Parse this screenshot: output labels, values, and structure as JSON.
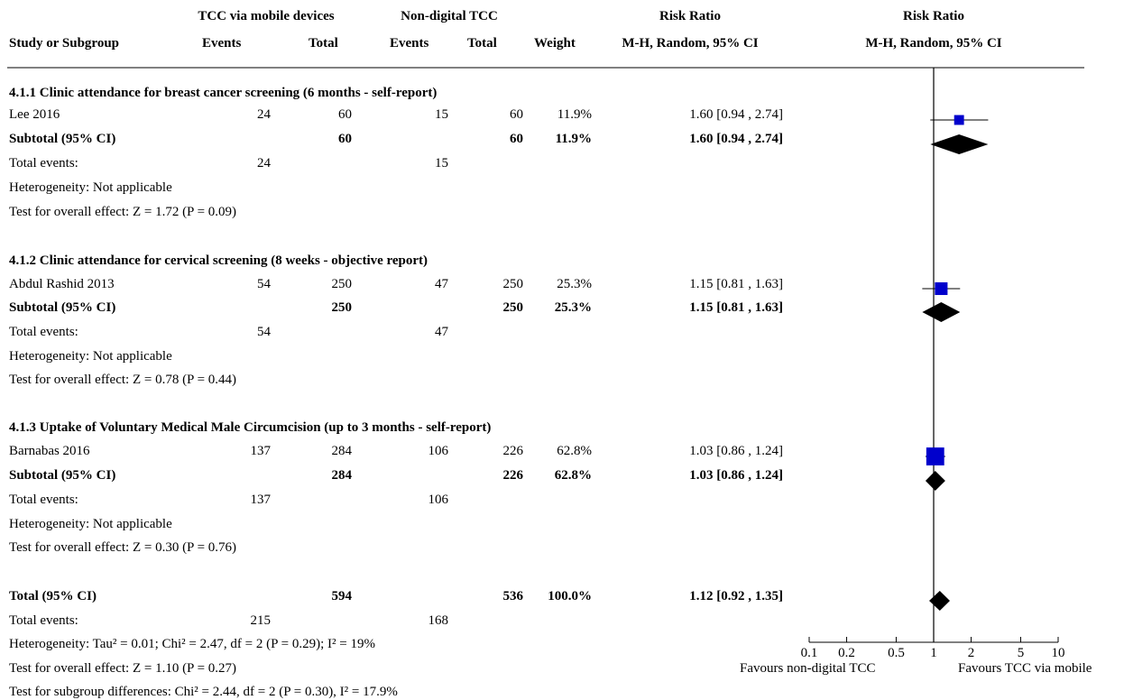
{
  "header": {
    "study_col": "Study or Subgroup",
    "group1": "TCC via mobile devices",
    "group2": "Non-digital TCC",
    "events": "Events",
    "total": "Total",
    "weight": "Weight",
    "rr_title": "Risk Ratio",
    "rr_method": "M-H, Random, 95% CI",
    "plot_title": "Risk Ratio",
    "plot_method": "M-H, Random, 95% CI"
  },
  "subgroups": [
    {
      "title": "4.1.1 Clinic attendance for breast cancer screening (6 months - self-report)",
      "study": {
        "name": "Lee 2016",
        "e1": "24",
        "t1": "60",
        "e2": "15",
        "t2": "60",
        "weight": "11.9%",
        "ci": "1.60 [0.94 , 2.74]"
      },
      "subtotal": {
        "label": "Subtotal (95% CI)",
        "t1": "60",
        "t2": "60",
        "weight": "11.9%",
        "ci": "1.60 [0.94 , 2.74]"
      },
      "events": {
        "label": "Total events:",
        "e1": "24",
        "e2": "15"
      },
      "heterogeneity": "Heterogeneity: Not applicable",
      "overall": "Test for overall effect: Z = 1.72 (P = 0.09)"
    },
    {
      "title": "4.1.2 Clinic attendance for cervical screening (8 weeks - objective report)",
      "study": {
        "name": "Abdul Rashid 2013",
        "e1": "54",
        "t1": "250",
        "e2": "47",
        "t2": "250",
        "weight": "25.3%",
        "ci": "1.15 [0.81 , 1.63]"
      },
      "subtotal": {
        "label": "Subtotal (95% CI)",
        "t1": "250",
        "t2": "250",
        "weight": "25.3%",
        "ci": "1.15 [0.81 , 1.63]"
      },
      "events": {
        "label": "Total events:",
        "e1": "54",
        "e2": "47"
      },
      "heterogeneity": "Heterogeneity: Not applicable",
      "overall": "Test for overall effect: Z = 0.78 (P = 0.44)"
    },
    {
      "title": "4.1.3 Uptake of Voluntary Medical Male Circumcision (up to 3 months - self-report)",
      "study": {
        "name": "Barnabas 2016",
        "e1": "137",
        "t1": "284",
        "e2": "106",
        "t2": "226",
        "weight": "62.8%",
        "ci": "1.03 [0.86 , 1.24]"
      },
      "subtotal": {
        "label": "Subtotal (95% CI)",
        "t1": "284",
        "t2": "226",
        "weight": "62.8%",
        "ci": "1.03 [0.86 , 1.24]"
      },
      "events": {
        "label": "Total events:",
        "e1": "137",
        "e2": "106"
      },
      "heterogeneity": "Heterogeneity: Not applicable",
      "overall": "Test for overall effect: Z = 0.30 (P = 0.76)"
    }
  ],
  "total": {
    "label": "Total (95% CI)",
    "t1": "594",
    "t2": "536",
    "weight": "100.0%",
    "ci": "1.12 [0.92 , 1.35]",
    "events_label": "Total events:",
    "e1": "215",
    "e2": "168",
    "heterogeneity": "Heterogeneity: Tau² = 0.01; Chi² = 2.47, df = 2 (P = 0.29); I² = 19%",
    "overall": "Test for overall effect: Z = 1.10 (P = 0.27)",
    "subgroup_diff": "Test for subgroup differences: Chi² = 2.44, df = 2 (P = 0.30), I² = 17.9%"
  },
  "axis": {
    "favours_left": "Favours non-digital TCC",
    "favours_right": "Favours TCC via mobile"
  },
  "chart_data": {
    "type": "forest",
    "scale": "log",
    "xlim": [
      0.1,
      10
    ],
    "ticks": [
      {
        "value": 0.1,
        "label": "0.1"
      },
      {
        "value": 0.2,
        "label": "0.2"
      },
      {
        "value": 0.5,
        "label": "0.5"
      },
      {
        "value": 1,
        "label": "1"
      },
      {
        "value": 2,
        "label": "2"
      },
      {
        "value": 5,
        "label": "5"
      },
      {
        "value": 10,
        "label": "10"
      }
    ],
    "studies": [
      {
        "name": "Lee 2016",
        "rr": 1.6,
        "lo": 0.94,
        "hi": 2.74,
        "weight": 11.9
      },
      {
        "name": "Abdul Rashid 2013",
        "rr": 1.15,
        "lo": 0.81,
        "hi": 1.63,
        "weight": 25.3
      },
      {
        "name": "Barnabas 2016",
        "rr": 1.03,
        "lo": 0.86,
        "hi": 1.24,
        "weight": 62.8
      }
    ],
    "subtotals": [
      {
        "rr": 1.6,
        "lo": 0.94,
        "hi": 2.74
      },
      {
        "rr": 1.15,
        "lo": 0.81,
        "hi": 1.63
      },
      {
        "rr": 1.03,
        "lo": 0.86,
        "hi": 1.24
      }
    ],
    "overall": {
      "rr": 1.12,
      "lo": 0.92,
      "hi": 1.35
    },
    "colors": {
      "study_marker": "#0000cc",
      "diamond": "#000000",
      "line": "#000000"
    }
  }
}
